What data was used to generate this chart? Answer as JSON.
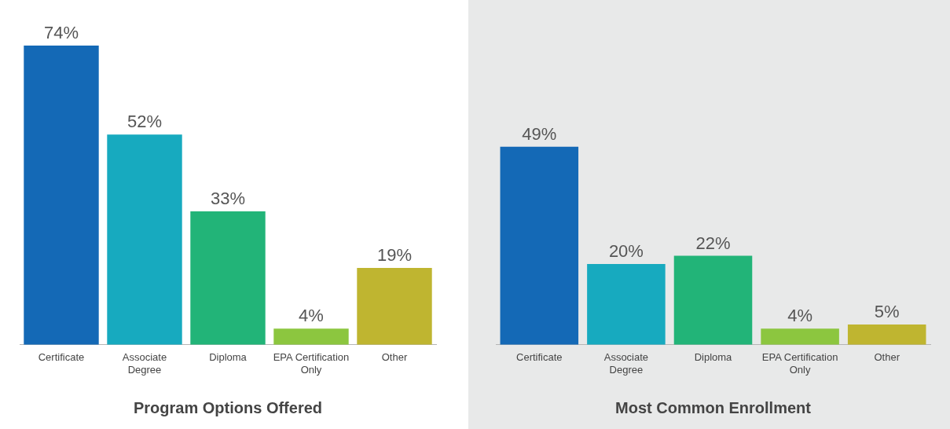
{
  "chart_data": [
    {
      "type": "bar",
      "xlabel": "Program Options Offered",
      "categories": [
        "Certificate",
        "Associate\nDegree",
        "Diploma",
        "EPA Certification\nOnly",
        "Other"
      ],
      "values": [
        74,
        52,
        33,
        4,
        19
      ],
      "colors": [
        "#1469b6",
        "#17aabf",
        "#22b478",
        "#8cc63f",
        "#bfb530"
      ],
      "value_labels": [
        "74%",
        "52%",
        "33%",
        "4%",
        "19%"
      ],
      "tick_labels": "x",
      "grid": false,
      "legend": false
    },
    {
      "type": "bar",
      "xlabel": "Most Common Enrollment",
      "categories": [
        "Certificate",
        "Associate\nDegree",
        "Diploma",
        "EPA Certification\nOnly",
        "Other"
      ],
      "values": [
        49,
        20,
        22,
        4,
        5
      ],
      "colors": [
        "#1469b6",
        "#17aabf",
        "#22b478",
        "#8cc63f",
        "#bfb530"
      ],
      "value_labels": [
        "49%",
        "20%",
        "22%",
        "4%",
        "5%"
      ],
      "tick_labels": "x",
      "grid": false,
      "legend": false
    }
  ]
}
